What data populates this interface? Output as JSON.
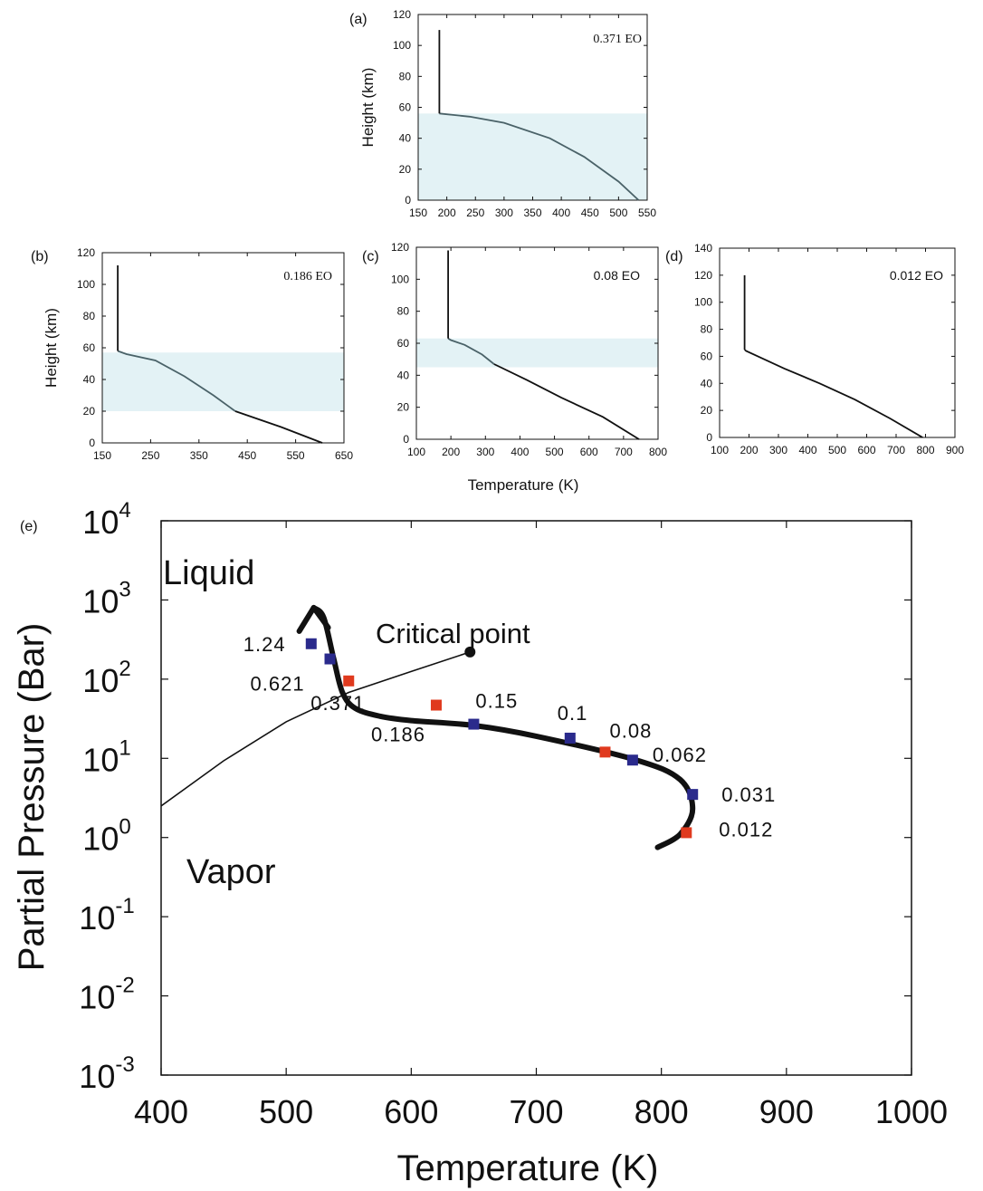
{
  "profile_panels": {
    "shared_xlabel": "Temperature (K)",
    "panels": [
      {
        "id": "a",
        "label": "(a)",
        "ylabel": "Height (km)",
        "annotation": "0.371 EO",
        "xlim": [
          150,
          550
        ],
        "xticks": [
          150,
          200,
          250,
          300,
          350,
          400,
          450,
          500,
          550
        ],
        "ylim": [
          0,
          120
        ],
        "yticks": [
          0,
          20,
          40,
          60,
          80,
          100,
          120
        ],
        "shade": [
          0,
          56
        ],
        "profile": [
          [
            535,
            0
          ],
          [
            500,
            12
          ],
          [
            440,
            28
          ],
          [
            380,
            40
          ],
          [
            300,
            50
          ],
          [
            240,
            54
          ],
          [
            187,
            56
          ],
          [
            187,
            110
          ]
        ],
        "profile_color_split": null
      },
      {
        "id": "b",
        "label": "(b)",
        "ylabel": "Height (km)",
        "annotation": "0.186 EO",
        "xlim": [
          150,
          650
        ],
        "xticks": [
          150,
          250,
          350,
          450,
          550,
          650
        ],
        "ylim": [
          0,
          120
        ],
        "yticks": [
          0,
          20,
          40,
          60,
          80,
          100,
          120
        ],
        "shade": [
          20,
          57
        ],
        "profile": [
          [
            605,
            0
          ],
          [
            520,
            10
          ],
          [
            425,
            20
          ],
          [
            380,
            30
          ],
          [
            320,
            42
          ],
          [
            260,
            52
          ],
          [
            200,
            56
          ],
          [
            182,
            58
          ],
          [
            182,
            112
          ]
        ],
        "profile_color_split": [
          2,
          7
        ]
      },
      {
        "id": "c",
        "label": "(c)",
        "ylabel": "",
        "annotation": "0.08 EO",
        "xlim": [
          100,
          800
        ],
        "xticks": [
          100,
          200,
          300,
          400,
          500,
          600,
          700,
          800
        ],
        "ylim": [
          0,
          120
        ],
        "yticks": [
          0,
          20,
          40,
          60,
          80,
          100,
          120
        ],
        "shade": [
          45,
          63
        ],
        "profile": [
          [
            745,
            0
          ],
          [
            640,
            14
          ],
          [
            520,
            26
          ],
          [
            420,
            37
          ],
          [
            325,
            47
          ],
          [
            290,
            53
          ],
          [
            240,
            59
          ],
          [
            200,
            62
          ],
          [
            192,
            63
          ],
          [
            192,
            118
          ]
        ],
        "profile_color_split": [
          4,
          8
        ]
      },
      {
        "id": "d",
        "label": "(d)",
        "ylabel": "",
        "annotation": "0.012 EO",
        "xlim": [
          100,
          900
        ],
        "xticks": [
          100,
          200,
          300,
          400,
          500,
          600,
          700,
          800,
          900
        ],
        "ylim": [
          0,
          140
        ],
        "yticks": [
          0,
          20,
          40,
          60,
          80,
          100,
          120,
          140
        ],
        "shade": null,
        "profile": [
          [
            790,
            0
          ],
          [
            680,
            14
          ],
          [
            560,
            28
          ],
          [
            440,
            40
          ],
          [
            320,
            51
          ],
          [
            240,
            59
          ],
          [
            190,
            64
          ],
          [
            185,
            65
          ],
          [
            185,
            120
          ]
        ],
        "profile_color_split": null
      }
    ]
  },
  "chart_data": {
    "type": "scatter",
    "panel_label": "(e)",
    "xlabel": "Temperature (K)",
    "ylabel": "Partial Pressure (Bar)",
    "xlim": [
      400,
      1000
    ],
    "xticks": [
      400,
      500,
      600,
      700,
      800,
      900,
      1000
    ],
    "y_scale": "log",
    "ylim": [
      0.001,
      10000
    ],
    "yticks": [
      {
        "base": "10",
        "exp": "4",
        "value": 10000
      },
      {
        "base": "10",
        "exp": "3",
        "value": 1000
      },
      {
        "base": "10",
        "exp": "2",
        "value": 100
      },
      {
        "base": "10",
        "exp": "1",
        "value": 10
      },
      {
        "base": "10",
        "exp": "0",
        "value": 1
      },
      {
        "base": "10",
        "exp": "-1",
        "value": 0.1
      },
      {
        "base": "10",
        "exp": "-2",
        "value": 0.01
      },
      {
        "base": "10",
        "exp": "-3",
        "value": 0.001
      }
    ],
    "regions": {
      "liquid": "Liquid",
      "vapor": "Vapor"
    },
    "critical_point": {
      "label": "Critical point",
      "T": 647,
      "P": 220
    },
    "saturation_curve": [
      [
        400,
        2.5
      ],
      [
        450,
        9.3
      ],
      [
        500,
        29
      ],
      [
        550,
        68
      ],
      [
        600,
        125
      ],
      [
        647,
        220
      ]
    ],
    "trajectory": [
      [
        797,
        0.75
      ],
      [
        815,
        1.1
      ],
      [
        825,
        2.3
      ],
      [
        815,
        5.4
      ],
      [
        780,
        9.5
      ],
      [
        700,
        19
      ],
      [
        650,
        26
      ],
      [
        600,
        30
      ],
      [
        575,
        34
      ],
      [
        555,
        43
      ],
      [
        545,
        68
      ],
      [
        538,
        180
      ],
      [
        530,
        600
      ],
      [
        522,
        800
      ]
    ],
    "points": [
      {
        "T": 520,
        "P": 280,
        "color": "#2a2a8c",
        "label": "1.24",
        "lx": -75,
        "ly": 8
      },
      {
        "T": 535,
        "P": 180,
        "color": "#2a2a8c",
        "label": "0.621",
        "lx": -88,
        "ly": 35
      },
      {
        "T": 550,
        "P": 95,
        "color": "#e03a1e",
        "label": "0.371",
        "lx": -42,
        "ly": 32
      },
      {
        "T": 620,
        "P": 47,
        "color": "#e03a1e",
        "label": "0.186",
        "lx": -72,
        "ly": 40
      },
      {
        "T": 650,
        "P": 27,
        "color": "#2a2a8c",
        "label": "0.15",
        "lx": 2,
        "ly": -18
      },
      {
        "T": 727,
        "P": 18,
        "color": "#2a2a8c",
        "label": "0.1",
        "lx": -14,
        "ly": -20
      },
      {
        "T": 755,
        "P": 12,
        "color": "#e03a1e",
        "label": "0.08",
        "lx": 5,
        "ly": -16
      },
      {
        "T": 777,
        "P": 9.5,
        "color": "#2a2a8c",
        "label": "0.062",
        "lx": 22,
        "ly": 2
      },
      {
        "T": 825,
        "P": 3.5,
        "color": "#2a2a8c",
        "label": "0.031",
        "lx": 32,
        "ly": 8
      },
      {
        "T": 820,
        "P": 1.15,
        "color": "#e03a1e",
        "label": "0.012",
        "lx": 36,
        "ly": 4
      }
    ]
  }
}
